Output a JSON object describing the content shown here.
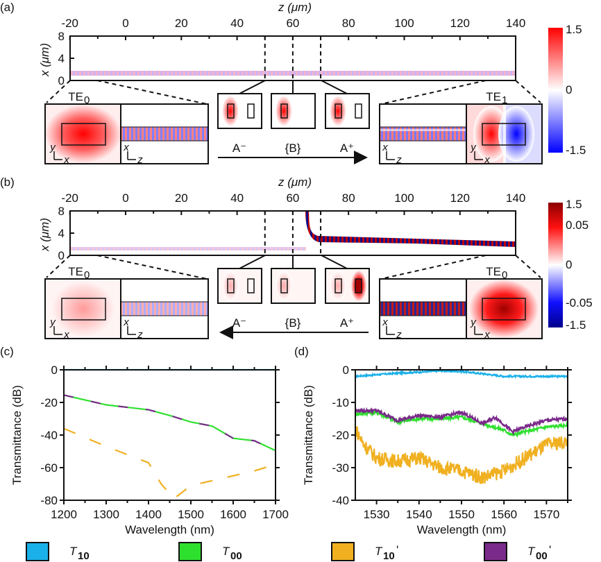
{
  "panel_a": {
    "label": "(a)",
    "xlabel": "z (μm)",
    "ylabel": "x (μm)",
    "z_ticks": [
      "-20",
      "0",
      "20",
      "40",
      "60",
      "80",
      "100",
      "120",
      "140"
    ],
    "x_ticks": [
      "8",
      "4",
      "0"
    ],
    "left_mode": "TE",
    "left_mode_sub": "0",
    "right_mode": "TE",
    "right_mode_sub": "1",
    "sections": [
      "A⁻",
      "{B}",
      "A⁺"
    ],
    "colorbar": [
      "1.5",
      "0",
      "-1.5"
    ],
    "axes_xy": [
      "y",
      "x"
    ],
    "axes_xz": [
      "x",
      "z"
    ],
    "arrow_direction": "right"
  },
  "panel_b": {
    "label": "(b)",
    "xlabel": "z (μm)",
    "ylabel": "x (μm)",
    "z_ticks": [
      "-20",
      "0",
      "20",
      "40",
      "60",
      "80",
      "100",
      "120",
      "140"
    ],
    "x_ticks": [
      "8",
      "4",
      "0"
    ],
    "left_mode": "TE",
    "left_mode_sub": "0",
    "right_mode": "TE",
    "right_mode_sub": "0",
    "sections": [
      "A⁻",
      "{B}",
      "A⁺"
    ],
    "colorbar": [
      "1.5",
      "0.05",
      "0",
      "-0.05",
      "-1.5"
    ],
    "axes_xy": [
      "y",
      "x"
    ],
    "axes_xz": [
      "x",
      "z"
    ],
    "arrow_direction": "left"
  },
  "legend": [
    {
      "name": "T",
      "sub": "10",
      "prime": "",
      "color": "#1ab0ea"
    },
    {
      "name": "T",
      "sub": "00",
      "prime": "",
      "color": "#2ee02e"
    },
    {
      "name": "T",
      "sub": "10",
      "prime": "'",
      "color": "#f0b020"
    },
    {
      "name": "T",
      "sub": "00",
      "prime": "'",
      "color": "#7a2a8a"
    }
  ],
  "chart_data": [
    {
      "type": "line",
      "panel": "(c)",
      "xlabel": "Wavelength (nm)",
      "ylabel": "Transmittance (dB)",
      "xlim": [
        1200,
        1700
      ],
      "ylim": [
        -80,
        0
      ],
      "xticks": [
        "1200",
        "1300",
        "1400",
        "1500",
        "1600",
        "1700"
      ],
      "yticks": [
        "0",
        "-20",
        "-40",
        "-60",
        "-80"
      ],
      "series": [
        {
          "name": "T10",
          "color": "#1ab0ea",
          "style": "solid",
          "x": [
            1200,
            1700
          ],
          "y": [
            0,
            0
          ]
        },
        {
          "name": "T00",
          "color": "#2ee02e",
          "style": "solid",
          "x": [
            1200,
            1225,
            1300,
            1350,
            1400,
            1450,
            1500,
            1550,
            1600,
            1650,
            1700
          ],
          "y": [
            -15.5,
            -17,
            -21.5,
            -23,
            -24.5,
            -28,
            -32,
            -34.5,
            -42,
            -43.5,
            -49.5
          ]
        },
        {
          "name": "T00'",
          "color": "#7a2a8a",
          "style": "dashed",
          "x": [
            1200,
            1225,
            1300,
            1350,
            1400,
            1450,
            1500,
            1550,
            1600,
            1650,
            1700
          ],
          "y": [
            -15.5,
            -17,
            -21.5,
            -23,
            -24.5,
            -28,
            -32,
            -34.5,
            -42,
            -43.5,
            -49.5
          ]
        },
        {
          "name": "T10'",
          "color": "#f0b020",
          "style": "dashed",
          "x": [
            1200,
            1300,
            1400,
            1430,
            1460,
            1500,
            1550,
            1600,
            1650,
            1700
          ],
          "y": [
            -36,
            -47,
            -57,
            -70,
            -79,
            -71,
            -68,
            -65,
            -62,
            -58
          ]
        }
      ]
    },
    {
      "type": "line",
      "panel": "(d)",
      "xlabel": "Wavelength (nm)",
      "ylabel": "Transmittance (dB)",
      "xlim": [
        1525,
        1575
      ],
      "ylim": [
        -40,
        0
      ],
      "xticks": [
        "1530",
        "1540",
        "1550",
        "1560",
        "1570"
      ],
      "yticks": [
        "0",
        "-10",
        "-20",
        "-30",
        "-40"
      ],
      "series": [
        {
          "name": "T10",
          "color": "#1ab0ea",
          "x": [
            1525,
            1530,
            1535,
            1540,
            1545,
            1550,
            1555,
            1560,
            1565,
            1570,
            1575
          ],
          "y": [
            -2,
            -1.5,
            -1,
            -0.7,
            -0.3,
            -0.5,
            -1.2,
            -2,
            -2,
            -2,
            -2
          ]
        },
        {
          "name": "T00",
          "color": "#2ee02e",
          "x": [
            1525,
            1530,
            1535,
            1540,
            1545,
            1550,
            1555,
            1560,
            1562,
            1565,
            1570,
            1575
          ],
          "y": [
            -13.5,
            -13,
            -16,
            -15,
            -15,
            -14.5,
            -16.5,
            -18.5,
            -20,
            -19,
            -17.5,
            -17
          ]
        },
        {
          "name": "T00'",
          "color": "#7a2a8a",
          "x": [
            1525,
            1530,
            1535,
            1540,
            1545,
            1550,
            1555,
            1558,
            1562,
            1565,
            1570,
            1575
          ],
          "y": [
            -12.5,
            -12.5,
            -15.5,
            -14,
            -14.5,
            -13,
            -16.5,
            -14.5,
            -19,
            -17.5,
            -15.5,
            -15
          ]
        },
        {
          "name": "T10'",
          "color": "#f0b020",
          "x": [
            1525,
            1527,
            1530,
            1535,
            1540,
            1545,
            1550,
            1555,
            1560,
            1565,
            1570,
            1575
          ],
          "y": [
            -18,
            -23,
            -27,
            -28,
            -27,
            -30,
            -31,
            -33,
            -31,
            -27,
            -23,
            -22
          ]
        }
      ]
    }
  ]
}
